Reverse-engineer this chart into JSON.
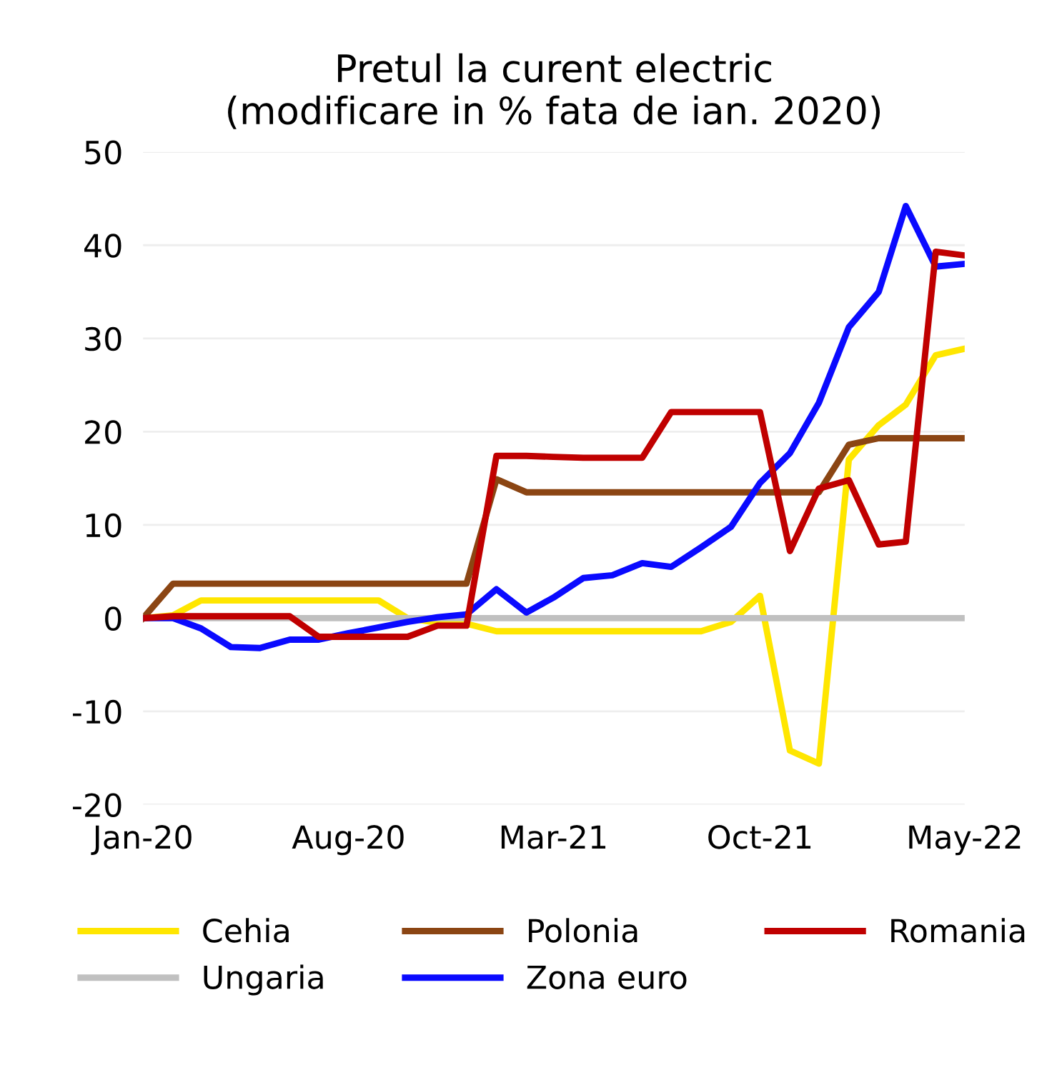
{
  "chart_data": {
    "type": "line",
    "title": "Pretul la curent electric\n(modificare in % fata de ian. 2020)",
    "x": [
      "2020-01",
      "2020-02",
      "2020-03",
      "2020-04",
      "2020-05",
      "2020-06",
      "2020-07",
      "2020-08",
      "2020-09",
      "2020-10",
      "2020-11",
      "2020-12",
      "2021-01",
      "2021-02",
      "2021-03",
      "2021-04",
      "2021-05",
      "2021-06",
      "2021-07",
      "2021-08",
      "2021-09",
      "2021-10",
      "2021-11",
      "2021-12",
      "2022-01",
      "2022-02",
      "2022-03",
      "2022-04",
      "2022-05"
    ],
    "series": [
      {
        "name": "Cehia",
        "color": "#ffe600",
        "values": [
          0,
          0.3,
          1.9,
          1.9,
          1.9,
          1.9,
          1.9,
          1.9,
          1.9,
          0,
          -0.5,
          -0.6,
          -1.4,
          -1.4,
          -1.4,
          -1.4,
          -1.4,
          -1.4,
          -1.4,
          -1.4,
          -0.4,
          2.4,
          -14.2,
          -15.6,
          17.0,
          20.7,
          22.9,
          28.2,
          28.9
        ]
      },
      {
        "name": "Ungaria",
        "color": "#c0c0c0",
        "values": [
          0,
          0,
          0,
          0,
          0,
          0,
          0,
          0,
          0,
          0,
          0,
          0,
          0,
          0,
          0,
          0,
          0,
          0,
          0,
          0,
          0,
          0,
          0,
          0,
          0,
          0,
          0,
          0,
          0
        ]
      },
      {
        "name": "Polonia",
        "color": "#8b4513",
        "values": [
          0,
          3.7,
          3.7,
          3.7,
          3.7,
          3.7,
          3.7,
          3.7,
          3.7,
          3.7,
          3.7,
          3.7,
          14.9,
          13.5,
          13.5,
          13.5,
          13.5,
          13.5,
          13.5,
          13.5,
          13.5,
          13.5,
          13.5,
          13.5,
          18.6,
          19.3,
          19.3,
          19.3,
          19.3
        ]
      },
      {
        "name": "Zona euro",
        "color": "#0a0aff",
        "values": [
          0,
          0,
          -1.1,
          -3.1,
          -3.2,
          -2.3,
          -2.3,
          -1.6,
          -1.0,
          -0.4,
          0.1,
          0.4,
          3.1,
          0.6,
          2.2,
          4.3,
          4.6,
          5.9,
          5.5,
          7.6,
          9.8,
          14.5,
          17.7,
          23.1,
          31.2,
          35.0,
          44.2,
          37.7,
          38.0
        ]
      },
      {
        "name": "Romania",
        "color": "#c00000",
        "values": [
          0,
          0.2,
          0.2,
          0.2,
          0.2,
          0.2,
          -2.0,
          -2.0,
          -2.0,
          -2.0,
          -0.8,
          -0.8,
          17.4,
          17.4,
          17.3,
          17.2,
          17.2,
          17.2,
          22.1,
          22.1,
          22.1,
          22.1,
          7.2,
          13.9,
          14.8,
          7.9,
          8.2,
          39.3,
          38.9
        ]
      }
    ],
    "xlim": [
      "2020-01",
      "2022-05"
    ],
    "xticks": [
      {
        "value": "2020-01",
        "label": "Jan-20"
      },
      {
        "value": "2020-08",
        "label": "Aug-20"
      },
      {
        "value": "2021-03",
        "label": "Mar-21"
      },
      {
        "value": "2021-10",
        "label": "Oct-21"
      },
      {
        "value": "2022-05",
        "label": "May-22"
      }
    ],
    "ylim": [
      -20,
      50
    ],
    "yticks": [
      -20,
      -10,
      0,
      10,
      20,
      30,
      40,
      50
    ],
    "grid": "y",
    "legend": "bottom",
    "marker": "none",
    "line_style": "solid"
  }
}
